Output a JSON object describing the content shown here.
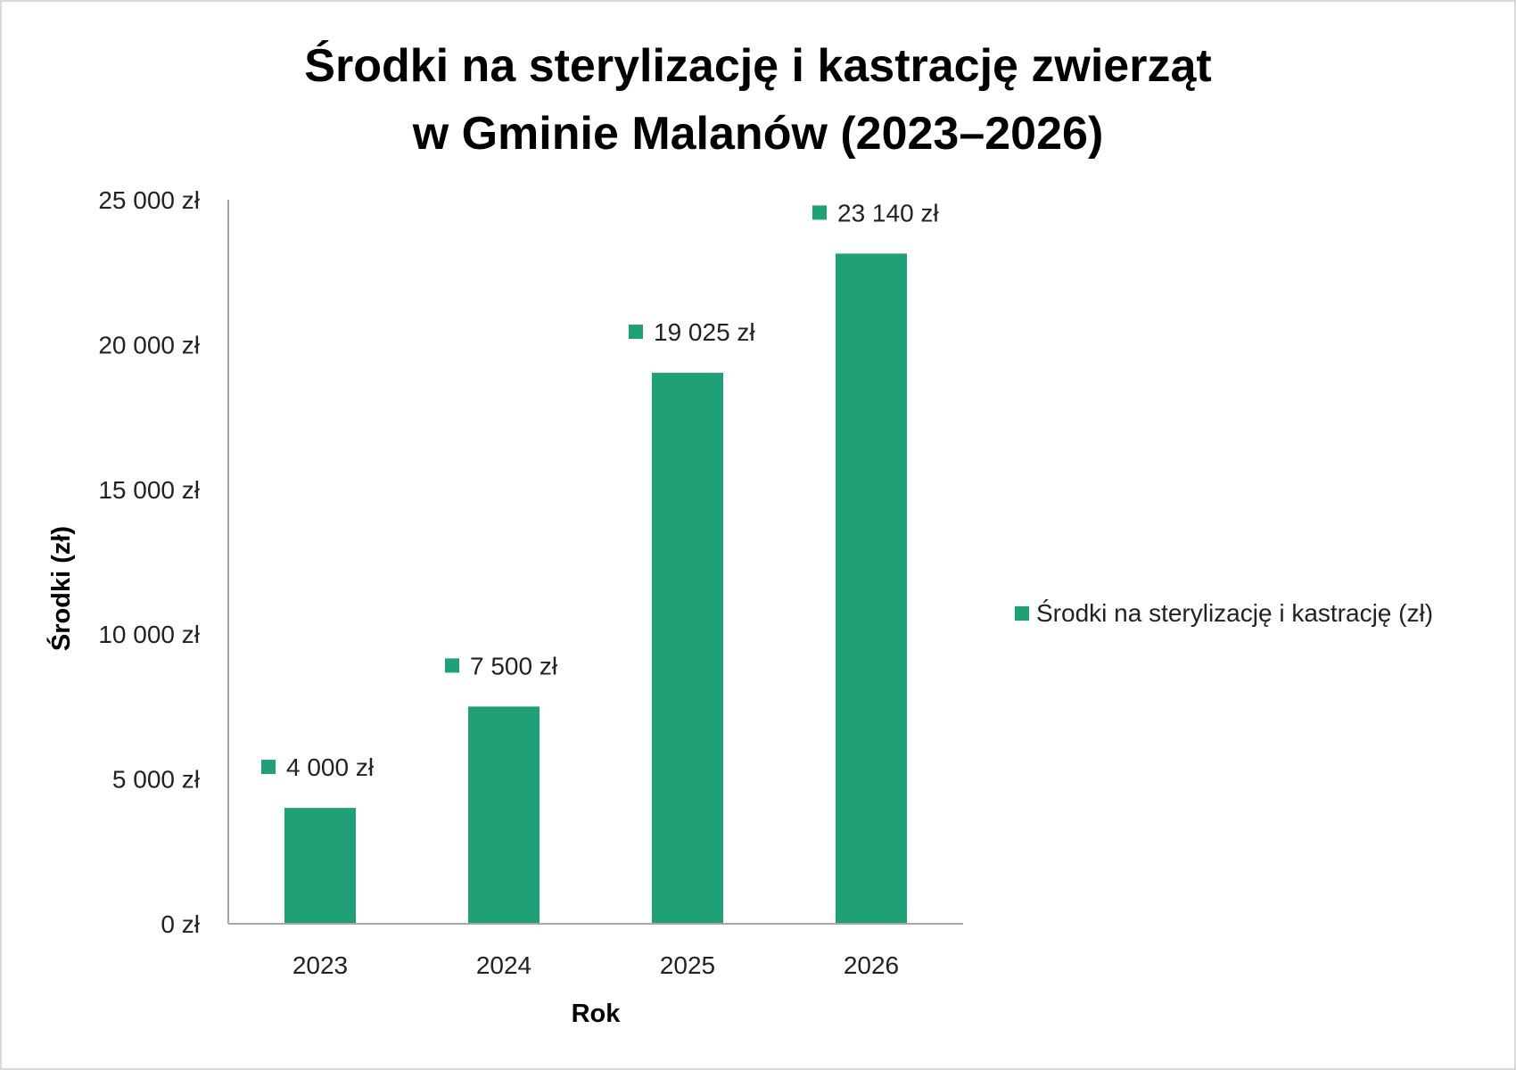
{
  "chart_data": {
    "type": "bar",
    "title": [
      "Środki na sterylizację i kastrację zwierząt",
      "w Gminie Malanów (2023–2026)"
    ],
    "xlabel": "Rok",
    "ylabel": "Środki (zł)",
    "categories": [
      "2023",
      "2024",
      "2025",
      "2026"
    ],
    "series": [
      {
        "name": "Środki na sterylizację i kastrację (zł)",
        "values": [
          4000,
          7500,
          19025,
          23140
        ],
        "color": "#1fa077"
      }
    ],
    "data_labels": [
      "4 000 zł",
      "7 500 zł",
      "19 025 zł",
      "23 140 zł"
    ],
    "ylim": [
      0,
      25000
    ],
    "yticks": [
      0,
      5000,
      10000,
      15000,
      20000,
      25000
    ],
    "ytick_labels": [
      "0 zł",
      "5 000 zł",
      "10 000 zł",
      "15 000 zł",
      "20 000 zł",
      "25 000 zł"
    ],
    "grid": false,
    "legend_position": "right"
  }
}
